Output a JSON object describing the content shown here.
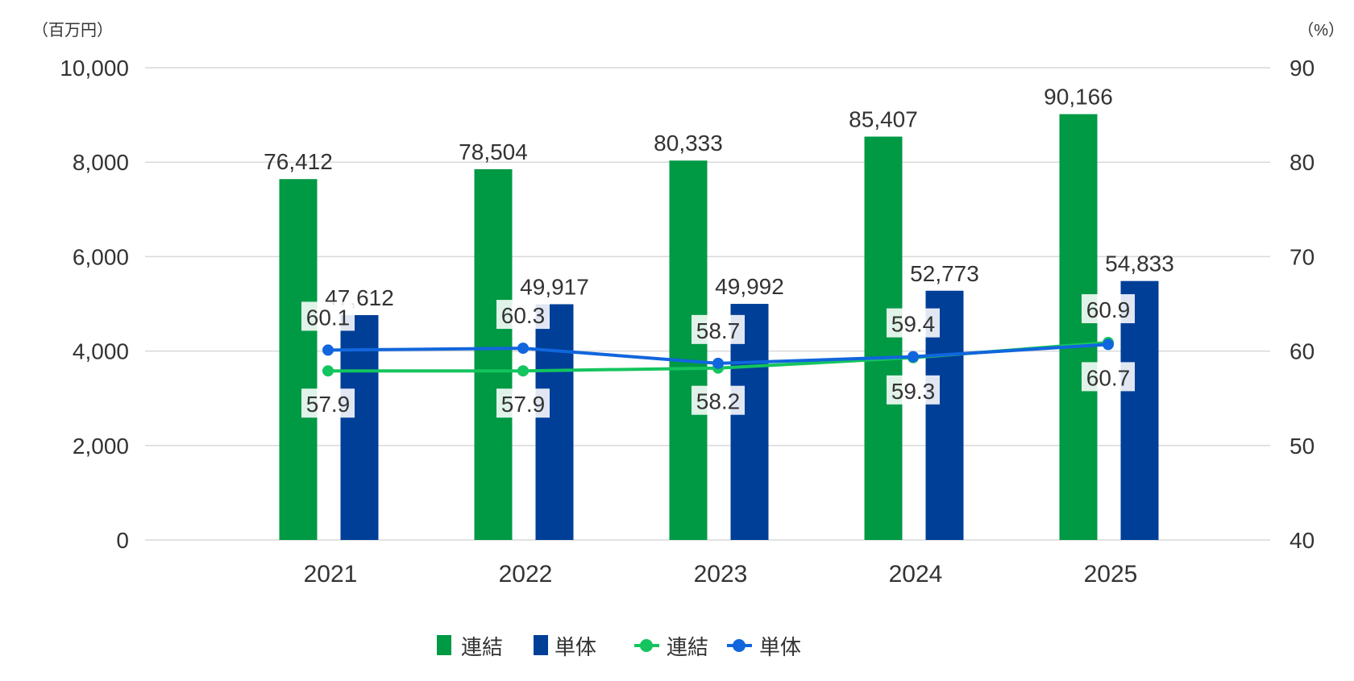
{
  "chart_data": {
    "type": "bar+line",
    "categories": [
      "2021",
      "2022",
      "2023",
      "2024",
      "2025"
    ],
    "left_axis": {
      "unit_label": "（百万円）",
      "ticks": [
        "0",
        "2,000",
        "4,000",
        "6,000",
        "8,000",
        "10,000"
      ],
      "ylim": [
        0,
        10000
      ]
    },
    "right_axis": {
      "unit_label": "（%）",
      "ticks": [
        "40",
        "50",
        "60",
        "70",
        "80",
        "90"
      ],
      "ylim": [
        40,
        90
      ]
    },
    "grid": true,
    "legend_placement": "bottom",
    "bar_series": [
      {
        "name": "連結",
        "color": "#009944",
        "values": [
          76412,
          78504,
          80333,
          85407,
          90166
        ],
        "labels": [
          "76,412",
          "78,504",
          "80,333",
          "85,407",
          "90,166"
        ]
      },
      {
        "name": "単体",
        "color": "#003f98",
        "values": [
          47612,
          49917,
          49992,
          52773,
          54833
        ],
        "labels": [
          "47,612",
          "49,917",
          "49,992",
          "52,773",
          "54,833"
        ]
      }
    ],
    "line_series": [
      {
        "name": "連結",
        "color": "#14c45e",
        "values": [
          57.9,
          57.9,
          58.2,
          59.3,
          60.9
        ],
        "labels": [
          "57.9",
          "57.9",
          "58.2",
          "59.3",
          "60.9"
        ],
        "label_pos": [
          "below",
          "below",
          "below",
          "below",
          "above"
        ]
      },
      {
        "name": "単体",
        "color": "#1166dd",
        "values": [
          60.1,
          60.3,
          58.7,
          59.4,
          60.7
        ],
        "labels": [
          "60.1",
          "60.3",
          "58.7",
          "59.4",
          "60.7"
        ],
        "label_pos": [
          "above",
          "above",
          "above",
          "above",
          "below"
        ]
      }
    ]
  }
}
